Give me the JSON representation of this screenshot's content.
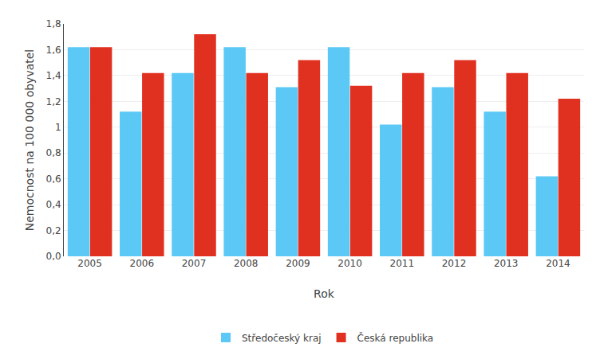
{
  "chart_data": {
    "type": "bar",
    "categories": [
      "2005",
      "2006",
      "2007",
      "2008",
      "2009",
      "2010",
      "2011",
      "2012",
      "2013",
      "2014"
    ],
    "series": [
      {
        "name": "Středočeský kraj",
        "color": "#5BC8F5",
        "values": [
          1.62,
          1.12,
          1.42,
          1.62,
          1.31,
          1.62,
          1.02,
          1.31,
          1.12,
          0.62
        ]
      },
      {
        "name": "Česká republika",
        "color": "#E03020",
        "values": [
          1.62,
          1.42,
          1.72,
          1.42,
          1.52,
          1.32,
          1.42,
          1.52,
          1.42,
          1.22
        ]
      }
    ],
    "xlabel": "Rok",
    "ylabel": "Nemocnost na 100 000 obyvatel",
    "ylim": [
      0,
      1.8
    ],
    "yticks": [
      {
        "value": 0,
        "label": "0,0"
      },
      {
        "value": 0.2,
        "label": "0,2"
      },
      {
        "value": 0.4,
        "label": "0,4"
      },
      {
        "value": 0.6,
        "label": "0,6"
      },
      {
        "value": 0.8,
        "label": "0,8"
      },
      1,
      {
        "value": 1.2,
        "label": "1,2"
      },
      {
        "value": 1.4,
        "label": "1,4"
      },
      {
        "value": 1.6,
        "label": "1,6"
      },
      {
        "value": 1.8,
        "label": "1,8"
      }
    ],
    "grid": true,
    "legend": "bottom"
  }
}
